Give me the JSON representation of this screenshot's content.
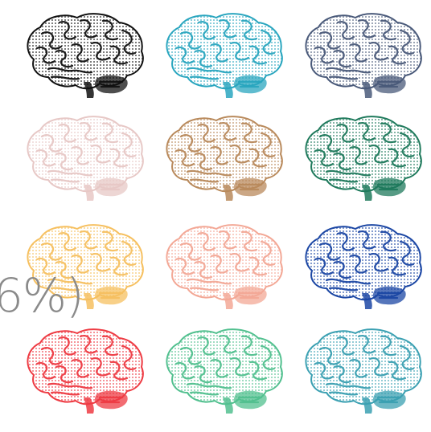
{
  "overlay": {
    "text": "6%)"
  },
  "brains": [
    {
      "name": "brain-black",
      "color": "#111111"
    },
    {
      "name": "brain-teal",
      "color": "#2aa6bf"
    },
    {
      "name": "brain-slate",
      "color": "#4a5a7a"
    },
    {
      "name": "brain-pale-pink",
      "color": "#e7c8c6"
    },
    {
      "name": "brain-tan",
      "color": "#b98a5c"
    },
    {
      "name": "brain-green",
      "color": "#1f7a5c"
    },
    {
      "name": "brain-yellow",
      "color": "#f6c060"
    },
    {
      "name": "brain-salmon",
      "color": "#f3a896"
    },
    {
      "name": "brain-blue",
      "color": "#1c47a4"
    },
    {
      "name": "brain-red",
      "color": "#ee3b43"
    },
    {
      "name": "brain-mint",
      "color": "#52c08f"
    },
    {
      "name": "brain-teal-2",
      "color": "#3ba0b2"
    }
  ]
}
